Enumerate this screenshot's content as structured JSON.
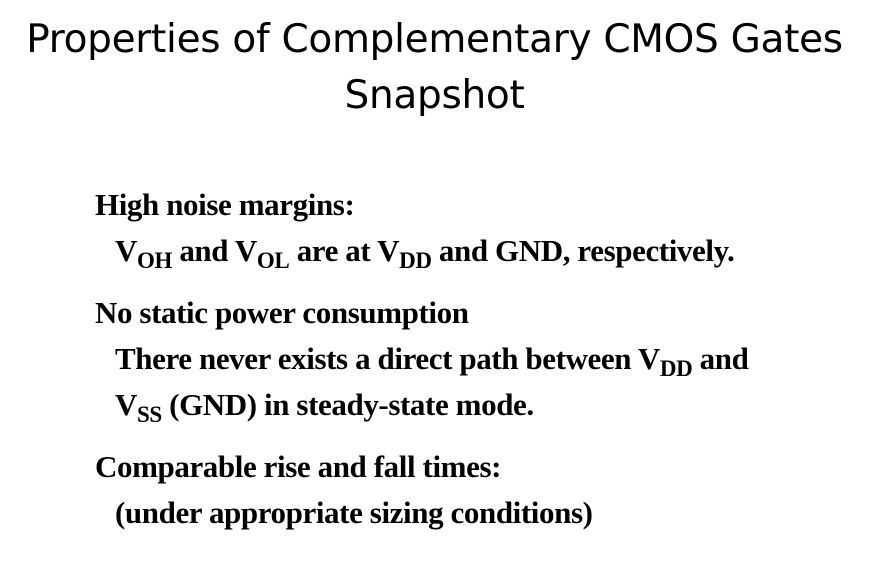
{
  "slide": {
    "title_line1": "Properties of Complementary CMOS Gates",
    "title_line2": "Snapshot",
    "items": [
      {
        "heading": "High noise margins:",
        "body": {
          "v1": "V",
          "v1_sub": "OH",
          "t1": " and ",
          "v2": "V",
          "v2_sub": "OL",
          "t2": " are at ",
          "v3": "V",
          "v3_sub": "DD",
          "t3": " and GND, respectively."
        }
      },
      {
        "heading": "No static power consumption",
        "body_line1": {
          "t1": "There never exists a direct path between ",
          "v1": "V",
          "v1_sub": "DD",
          "t2": " and"
        },
        "body_line2": {
          "v1": "V",
          "v1_sub": "SS",
          "t1": " (GND) in steady-state mode."
        }
      },
      {
        "heading": "Comparable rise and fall times:",
        "body": "(under appropriate sizing conditions)"
      }
    ]
  }
}
